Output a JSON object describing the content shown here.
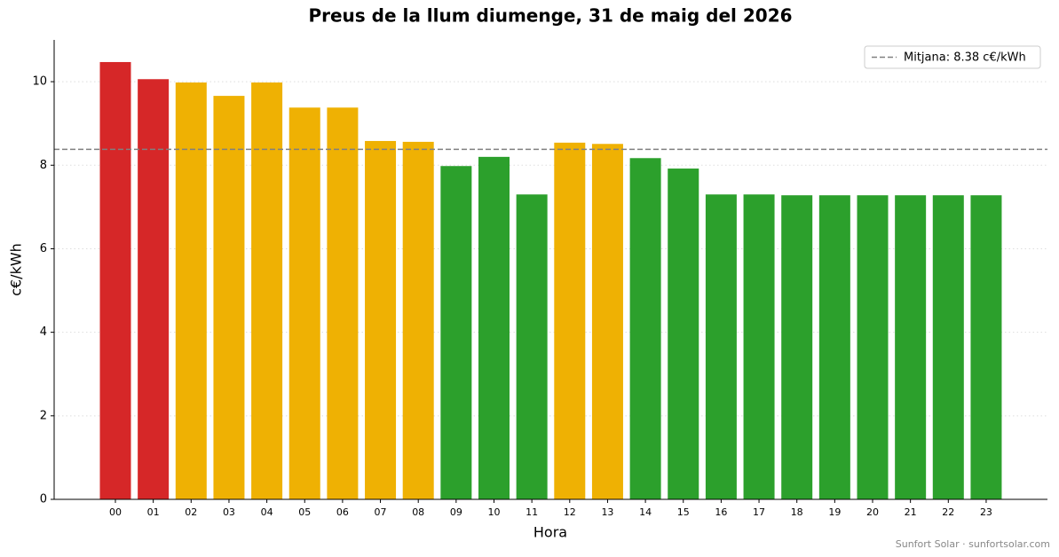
{
  "chart_data": {
    "type": "bar",
    "title": "Preus de la llum diumenge, 31 de maig del 2026",
    "x_label": "Hora",
    "y_label": "c€/kWh",
    "categories": [
      "00",
      "01",
      "02",
      "03",
      "04",
      "05",
      "06",
      "07",
      "08",
      "09",
      "10",
      "11",
      "12",
      "13",
      "14",
      "15",
      "16",
      "17",
      "18",
      "19",
      "20",
      "21",
      "22",
      "23"
    ],
    "values": [
      10.47,
      10.06,
      9.98,
      9.66,
      9.98,
      9.38,
      9.38,
      8.58,
      8.56,
      7.98,
      8.2,
      7.3,
      8.54,
      8.51,
      8.17,
      7.92,
      7.3,
      7.3,
      7.28,
      7.28,
      7.28,
      7.28,
      7.28,
      7.28
    ],
    "colors": [
      "#d62728",
      "#d62728",
      "#efb103",
      "#efb103",
      "#efb103",
      "#efb103",
      "#efb103",
      "#efb103",
      "#efb103",
      "#2ca02c",
      "#2ca02c",
      "#2ca02c",
      "#efb103",
      "#efb103",
      "#2ca02c",
      "#2ca02c",
      "#2ca02c",
      "#2ca02c",
      "#2ca02c",
      "#2ca02c",
      "#2ca02c",
      "#2ca02c",
      "#2ca02c",
      "#2ca02c"
    ],
    "mean": {
      "value": 8.38,
      "label": "Mitjana: 8.38 c€/kWh",
      "color": "#808080"
    },
    "ylim": [
      0,
      11
    ],
    "yticks": [
      0,
      2,
      4,
      6,
      8,
      10
    ],
    "grid": true,
    "legend": "upper right",
    "footer": "Sunfort Solar · sunfortsolar.com"
  }
}
